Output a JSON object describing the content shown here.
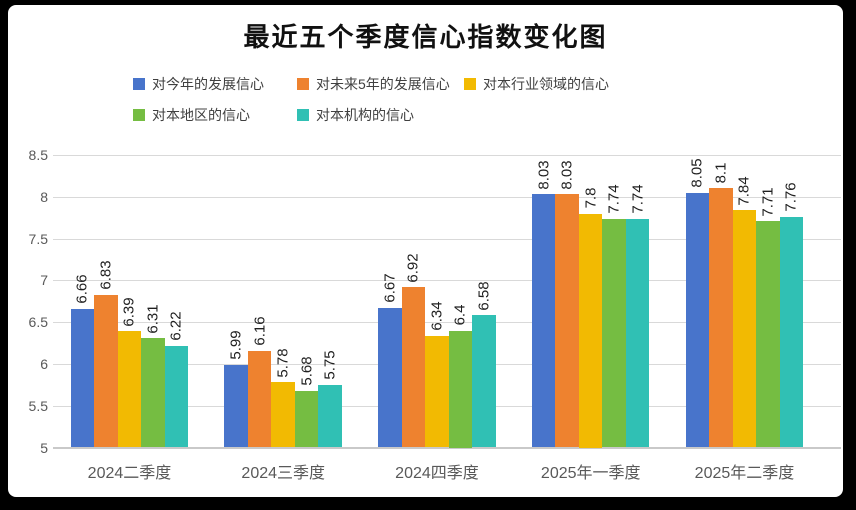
{
  "frame": {
    "background_color": "#000000",
    "panel_color": "#FFFFFF"
  },
  "chart_data": {
    "type": "bar",
    "title": "最近五个季度信心指数变化图",
    "categories": [
      "2024二季度",
      "2024三季度",
      "2024四季度",
      "2025年一季度",
      "2025年二季度"
    ],
    "series": [
      {
        "name": "对今年的发展信心",
        "color": "#4874CB",
        "values": [
          6.66,
          5.99,
          6.67,
          8.03,
          8.05
        ]
      },
      {
        "name": "对未来5年的发展信心",
        "color": "#EE822F",
        "values": [
          6.83,
          6.16,
          6.92,
          8.03,
          8.1
        ]
      },
      {
        "name": "对本行业领域的信心",
        "color": "#F2BA02",
        "values": [
          6.39,
          5.78,
          6.34,
          7.8,
          7.84
        ]
      },
      {
        "name": "对本地区的信心",
        "color": "#75BD42",
        "values": [
          6.31,
          5.68,
          6.4,
          7.74,
          7.71
        ]
      },
      {
        "name": "对本机构的信心",
        "color": "#30C0B4",
        "values": [
          6.22,
          5.75,
          6.58,
          7.74,
          7.76
        ]
      }
    ],
    "ylim": [
      5,
      8.5
    ],
    "ytick_step": 0.5,
    "ytick_labels": [
      "8.5",
      "8",
      "7.5",
      "7",
      "6.5",
      "6",
      "5.5",
      "5"
    ],
    "grid": true,
    "legend_position": "top",
    "data_labels_rotated_degrees": -90
  },
  "colors": {
    "gridline": "#D9D9D9",
    "axis_line": "#C9C9C9",
    "axis_text": "#595959",
    "data_label_text": "#1F1F1F",
    "legend_text": "#404040",
    "title_text": "#111111"
  }
}
